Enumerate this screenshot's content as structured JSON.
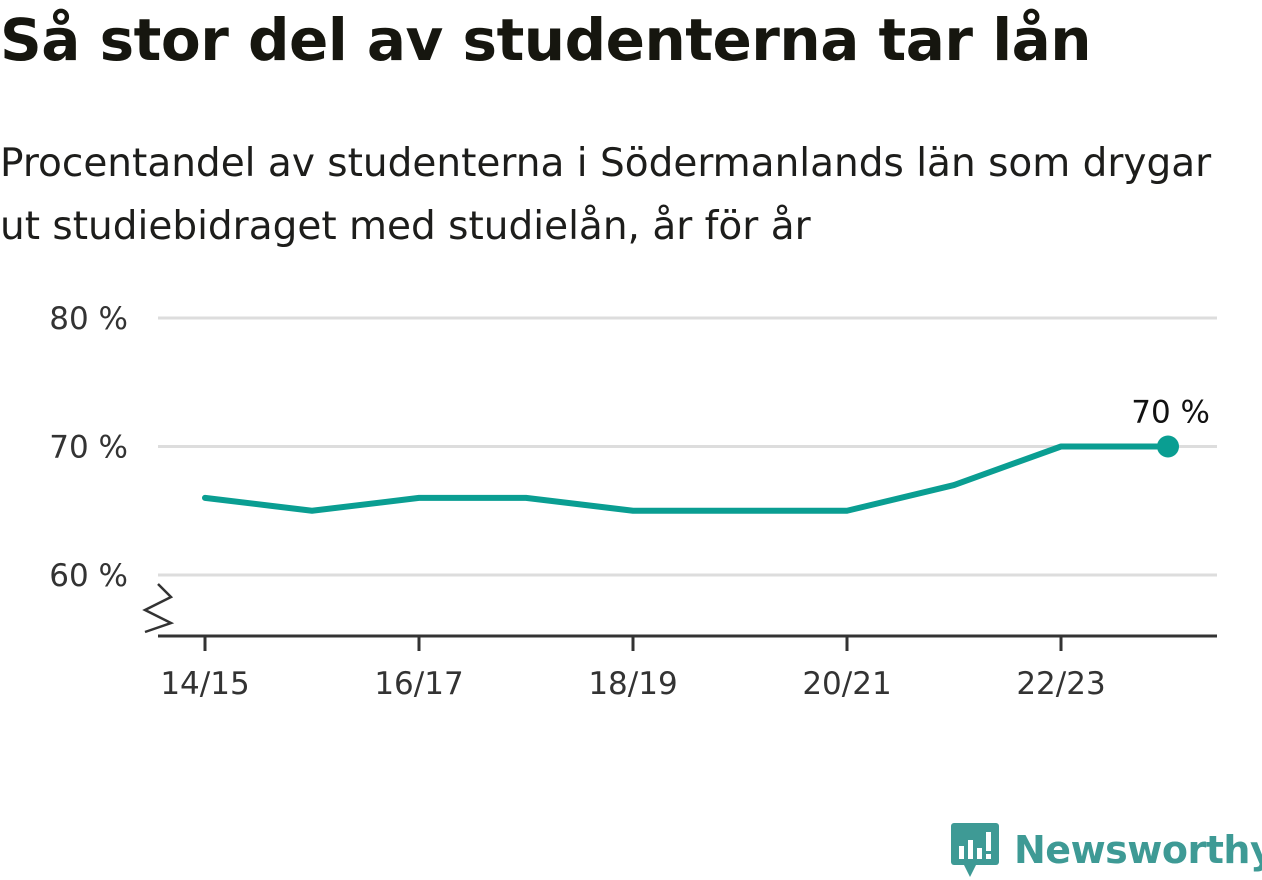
{
  "title": "Så stor del av studenterna tar lån",
  "subtitle": "Procentandel av studenterna i Södermanlands län som drygar ut studiebidraget med studielån, år för år",
  "brand": {
    "name": "Newsworthy",
    "icon": "newsworthy-logo-icon"
  },
  "colors": {
    "line": "#0a9e92",
    "grid": "#dddddd",
    "axis": "#333333",
    "brand": "#3e9a95"
  },
  "chart_data": {
    "type": "line",
    "x": [
      "14/15",
      "15/16",
      "16/17",
      "17/18",
      "18/19",
      "19/20",
      "20/21",
      "21/22",
      "22/23",
      "23/24"
    ],
    "values": [
      66,
      65,
      66,
      66,
      65,
      65,
      65,
      67,
      70,
      70
    ],
    "x_tick_labels": [
      "14/15",
      "16/17",
      "18/19",
      "20/21",
      "22/23"
    ],
    "y_ticks": [
      60,
      70,
      80
    ],
    "y_tick_labels": [
      "60 %",
      "70 %",
      "80 %"
    ],
    "ylim": [
      60,
      80
    ],
    "y_axis_broken": true,
    "grid": true,
    "end_label": "70 %",
    "xlabel": "",
    "ylabel": ""
  }
}
